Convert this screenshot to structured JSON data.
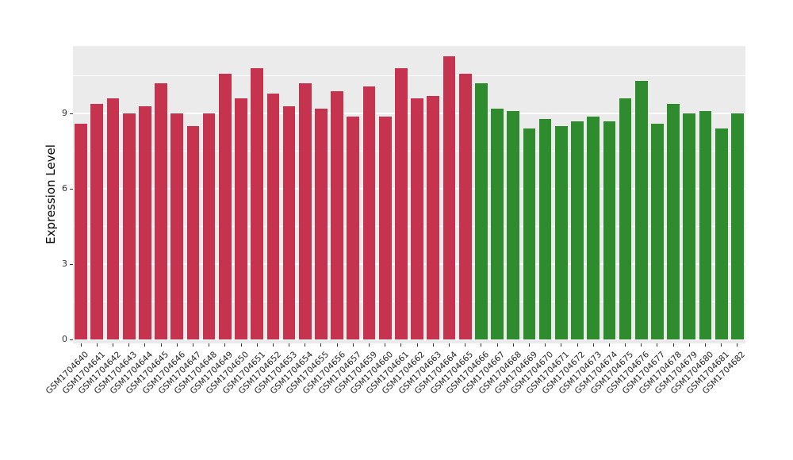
{
  "chart_data": {
    "type": "bar",
    "title": "",
    "xlabel": "",
    "ylabel": "Expression Level",
    "ylim": [
      0,
      11.7
    ],
    "y_major_ticks": [
      0,
      3,
      6,
      9
    ],
    "y_minor_ticks": [
      1.5,
      4.5,
      7.5,
      10.5
    ],
    "grid": true,
    "legend_position": "none",
    "panel_background": "#EBEBEB",
    "grid_color": "#FFFFFF",
    "colors": {
      "red": "#C5334F",
      "green": "#2E8B2E"
    },
    "categories": [
      "GSM1704640",
      "GSM1704641",
      "GSM1704642",
      "GSM1704643",
      "GSM1704644",
      "GSM1704645",
      "GSM1704646",
      "GSM1704647",
      "GSM1704648",
      "GSM1704649",
      "GSM1704650",
      "GSM1704651",
      "GSM1704652",
      "GSM1704653",
      "GSM1704654",
      "GSM1704655",
      "GSM1704656",
      "GSM1704657",
      "GSM1704659",
      "GSM1704660",
      "GSM1704661",
      "GSM1704662",
      "GSM1704663",
      "GSM1704664",
      "GSM1704665",
      "GSM1704666",
      "GSM1704667",
      "GSM1704668",
      "GSM1704669",
      "GSM1704670",
      "GSM1704671",
      "GSM1704672",
      "GSM1704673",
      "GSM1704674",
      "GSM1704675",
      "GSM1704676",
      "GSM1704677",
      "GSM1704678",
      "GSM1704679",
      "GSM1704680",
      "GSM1704681",
      "GSM1704682"
    ],
    "values": [
      8.6,
      9.4,
      9.6,
      9.0,
      9.3,
      10.2,
      9.0,
      8.5,
      9.0,
      10.6,
      9.6,
      10.8,
      9.8,
      9.3,
      10.2,
      9.2,
      9.9,
      8.9,
      10.1,
      8.9,
      10.8,
      9.6,
      9.7,
      11.3,
      10.6,
      10.2,
      9.2,
      9.1,
      8.4,
      8.8,
      8.5,
      8.7,
      8.9,
      8.7,
      9.6,
      10.3,
      8.6,
      9.4,
      9.0,
      9.1,
      8.4,
      9.0
    ],
    "groups": [
      "red",
      "red",
      "red",
      "red",
      "red",
      "red",
      "red",
      "red",
      "red",
      "red",
      "red",
      "red",
      "red",
      "red",
      "red",
      "red",
      "red",
      "red",
      "red",
      "red",
      "red",
      "red",
      "red",
      "red",
      "red",
      "green",
      "green",
      "green",
      "green",
      "green",
      "green",
      "green",
      "green",
      "green",
      "green",
      "green",
      "green",
      "green",
      "green",
      "green",
      "green",
      "green"
    ]
  }
}
